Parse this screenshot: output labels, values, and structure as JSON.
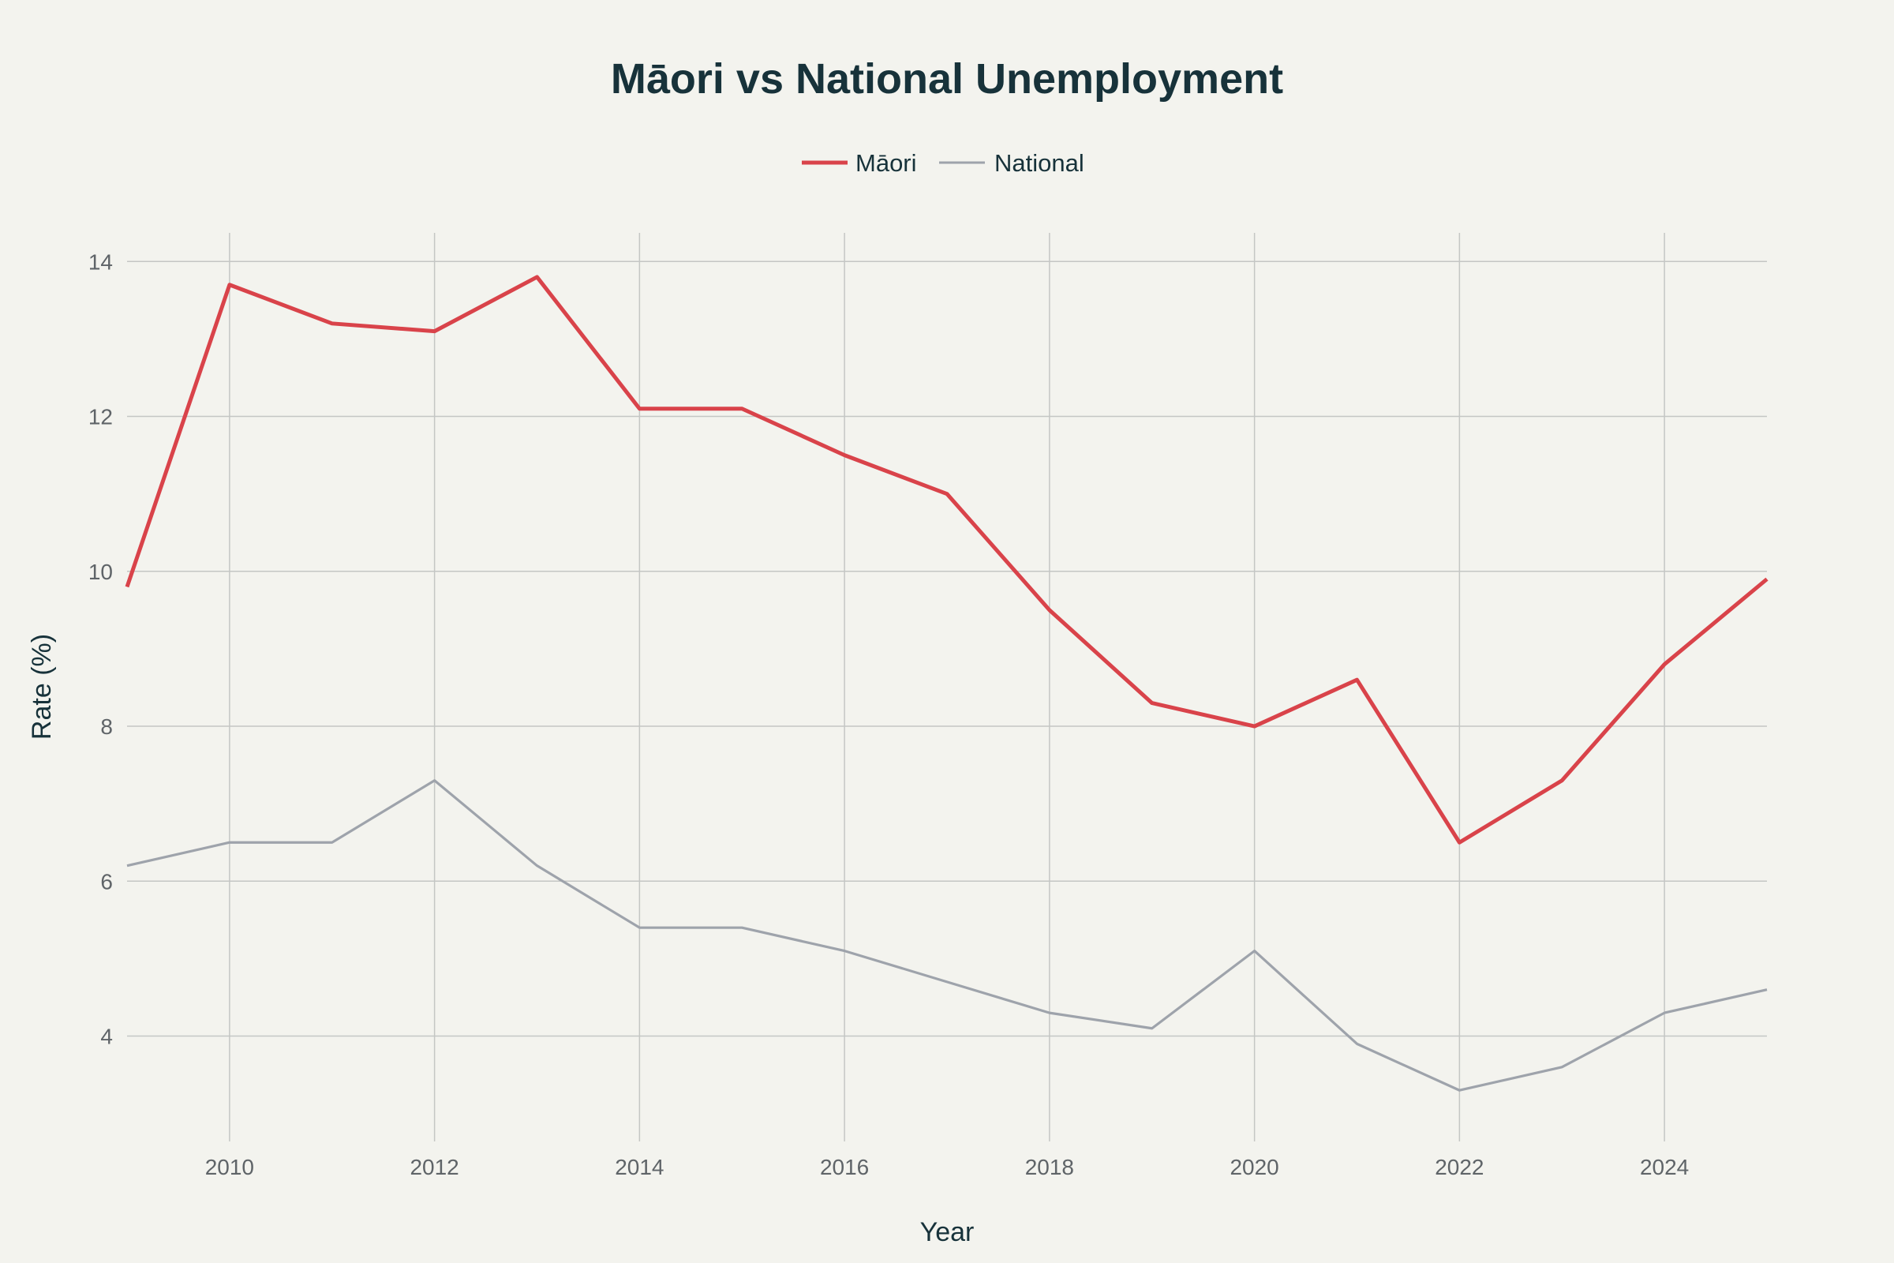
{
  "chart_data": {
    "type": "line",
    "title": "Māori vs National Unemployment",
    "xlabel": "Year",
    "ylabel": "Rate (%)",
    "x": [
      2009,
      2010,
      2011,
      2012,
      2013,
      2014,
      2015,
      2016,
      2017,
      2018,
      2019,
      2020,
      2021,
      2022,
      2023,
      2024,
      2025
    ],
    "xlim": [
      2009,
      2025
    ],
    "ylim": [
      2.64,
      14.37
    ],
    "xticks": [
      "2010",
      "2012",
      "2014",
      "2016",
      "2018",
      "2020",
      "2022",
      "2024"
    ],
    "yticks": [
      "4",
      "6",
      "8",
      "10",
      "12",
      "14"
    ],
    "grid": true,
    "legend_placement": "top-center",
    "series": [
      {
        "name": "Māori",
        "color": "#d9434a",
        "values": [
          9.8,
          13.7,
          13.2,
          13.1,
          13.8,
          12.1,
          12.1,
          11.5,
          11.0,
          9.5,
          8.3,
          8.0,
          8.6,
          6.5,
          7.3,
          8.8,
          9.9
        ]
      },
      {
        "name": "National",
        "color": "#9ea3ab",
        "values": [
          6.2,
          6.5,
          6.5,
          7.3,
          6.2,
          5.4,
          5.4,
          5.1,
          4.7,
          4.3,
          4.1,
          5.1,
          3.9,
          3.3,
          3.6,
          4.3,
          4.6
        ]
      }
    ]
  }
}
